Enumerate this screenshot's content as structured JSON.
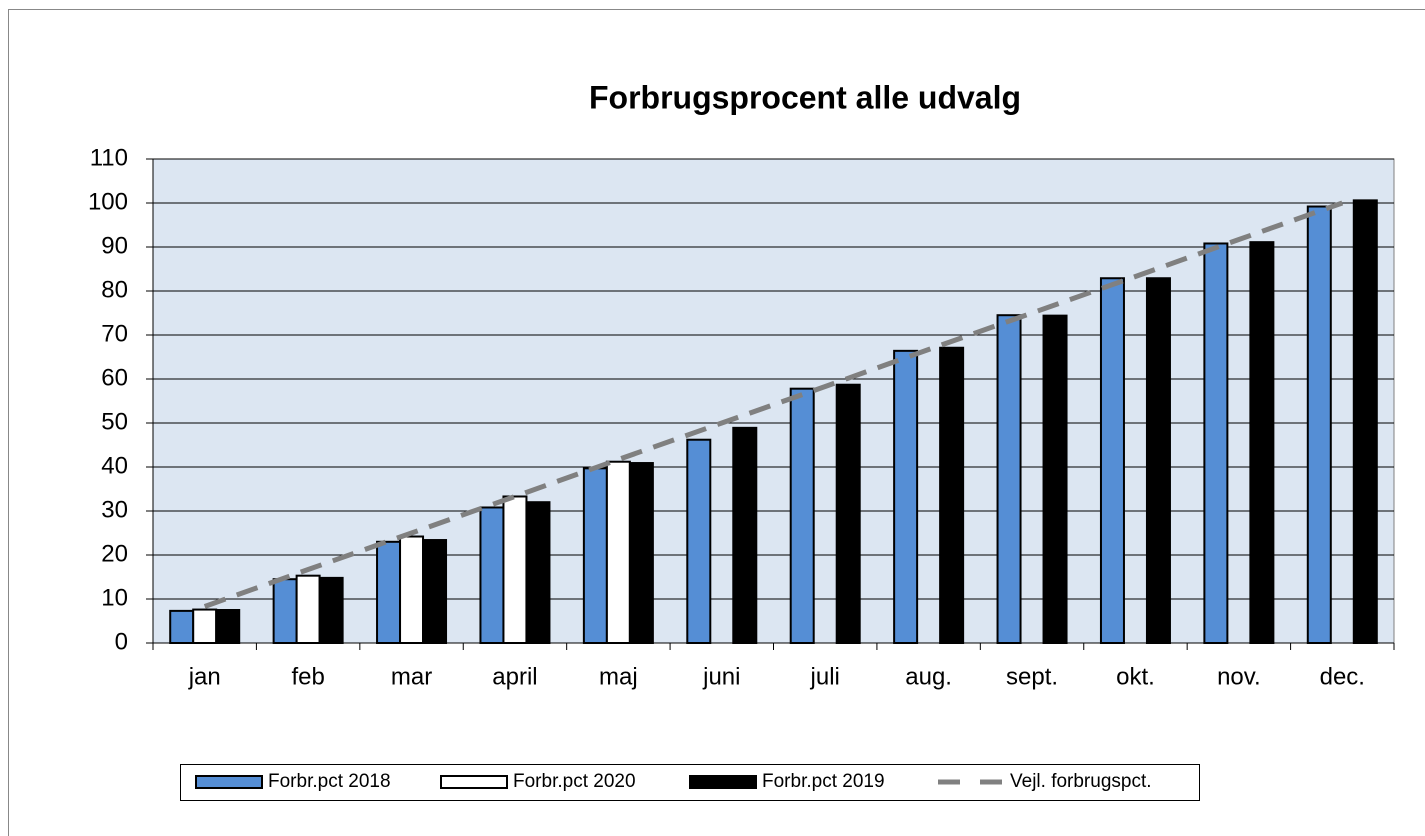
{
  "chart_data": {
    "type": "bar",
    "title": "Forbrugsprocent alle udvalg",
    "categories": [
      "jan",
      "feb",
      "mar",
      "april",
      "maj",
      "juni",
      "juli",
      "aug.",
      "sept.",
      "okt.",
      "nov.",
      "dec."
    ],
    "series": [
      {
        "name": "Forbr.pct 2018",
        "color": "#558ed5",
        "values": [
          7.3,
          14.5,
          23,
          30.8,
          39.7,
          46.2,
          57.8,
          66.4,
          74.5,
          82.9,
          90.8,
          99.2
        ]
      },
      {
        "name": "Forbr.pct 2020",
        "color": "#ffffff",
        "values": [
          7.6,
          15.3,
          24.2,
          33.3,
          41.2,
          null,
          null,
          null,
          null,
          null,
          null,
          null
        ]
      },
      {
        "name": "Forbr.pct 2019",
        "color": "#000000",
        "values": [
          7.5,
          14.8,
          23.4,
          32,
          40.9,
          48.9,
          58.7,
          67.1,
          74.4,
          82.9,
          91.1,
          100.6
        ]
      },
      {
        "name": "Vejl. forbrugspct.",
        "color": "#808080",
        "type": "line",
        "values": [
          8.3,
          16.7,
          25,
          33.3,
          41.7,
          50,
          58.3,
          66.7,
          75,
          83.3,
          91.7,
          100
        ]
      }
    ],
    "ylim": [
      0,
      110
    ],
    "yticks": [
      0,
      10,
      20,
      30,
      40,
      50,
      60,
      70,
      80,
      90,
      100,
      110
    ],
    "grid": true,
    "legend": "bottom"
  }
}
